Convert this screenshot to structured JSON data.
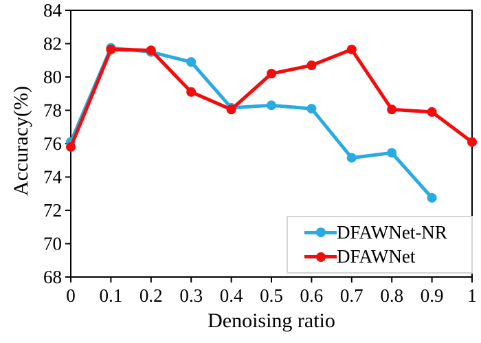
{
  "chart_data": {
    "type": "line",
    "title": "",
    "xlabel": "Denoising ratio",
    "ylabel": "Accuracy(%)",
    "xlim": [
      0,
      1
    ],
    "ylim": [
      68,
      84
    ],
    "grid": false,
    "legend_position": "lower-right-inside",
    "x_ticks": [
      0,
      0.1,
      0.2,
      0.3,
      0.4,
      0.5,
      0.6,
      0.7,
      0.8,
      0.9,
      1
    ],
    "x_tick_labels": [
      "0",
      "0.1",
      "0.2",
      "0.3",
      "0.4",
      "0.5",
      "0.6",
      "0.7",
      "0.8",
      "0.9",
      "1"
    ],
    "y_ticks": [
      68,
      70,
      72,
      74,
      76,
      78,
      80,
      82,
      84
    ],
    "y_tick_labels": [
      "68",
      "70",
      "72",
      "74",
      "76",
      "78",
      "80",
      "82",
      "84"
    ],
    "series": [
      {
        "name": "DFAWNet-NR",
        "color": "#29abe2",
        "x": [
          0,
          0.1,
          0.2,
          0.3,
          0.4,
          0.5,
          0.6,
          0.7,
          0.8,
          0.9
        ],
        "values": [
          76.1,
          81.75,
          81.5,
          80.9,
          78.15,
          78.3,
          78.1,
          75.15,
          75.45,
          72.75
        ]
      },
      {
        "name": "DFAWNet",
        "color": "#f20d0d",
        "x": [
          0,
          0.1,
          0.2,
          0.3,
          0.4,
          0.5,
          0.6,
          0.7,
          0.8,
          0.9,
          1
        ],
        "values": [
          75.8,
          81.65,
          81.6,
          79.1,
          78.05,
          80.2,
          80.7,
          81.65,
          78.05,
          77.9,
          76.1
        ]
      }
    ]
  }
}
